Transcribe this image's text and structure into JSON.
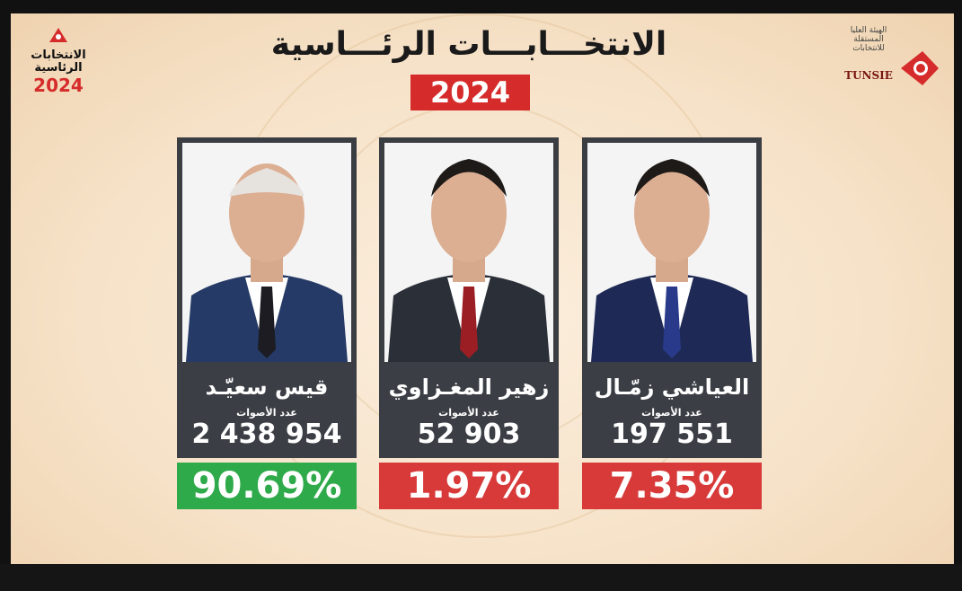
{
  "header": {
    "title": "الانتخـــابـــات الرئـــاسية",
    "year": "2024"
  },
  "logo_left": {
    "text": "الانتخابات الرئاسية",
    "year": "2024"
  },
  "logo_right": {
    "text": "الهيئة العليا المستقلة للانتخابات",
    "abbr": "TUNSIE"
  },
  "candidates": [
    {
      "name": "قيس سعيّـد",
      "votes_label": "عدد الأصوات",
      "votes": "2 438 954",
      "percent": "90.69%",
      "color": "#2eaa4a"
    },
    {
      "name": "زهير المغـزاوي",
      "votes_label": "عدد الأصوات",
      "votes": "52 903",
      "percent": "1.97%",
      "color": "#d83a3a"
    },
    {
      "name": "العياشي زمّـال",
      "votes_label": "عدد الأصوات",
      "votes": "197 551",
      "percent": "7.35%",
      "color": "#d83a3a"
    }
  ]
}
